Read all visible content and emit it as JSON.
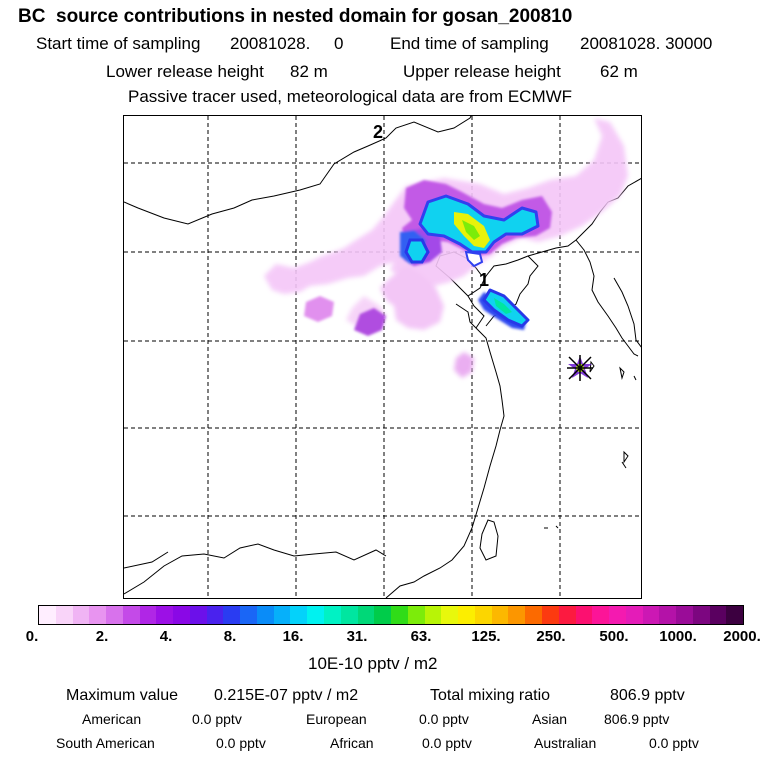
{
  "title": "BC  source contributions in nested domain for gosan_200810",
  "sampling": {
    "start_label": "Start time of sampling",
    "start_value": "20081028.     0",
    "end_label": "End time of sampling",
    "end_value": "20081028. 30000"
  },
  "release": {
    "lower_label": "Lower release height",
    "lower_value": "82 m",
    "upper_label": "Upper release height",
    "upper_value": "62 m"
  },
  "note": "Passive tracer used, meteorological data are from ECMWF",
  "map": {
    "markers": [
      {
        "label": "1"
      },
      {
        "label": "2"
      }
    ],
    "receptor": "gosan-receptor-star"
  },
  "colorbar": {
    "ticks": [
      "0.",
      "2.",
      "4.",
      "8.",
      "16.",
      "31.",
      "63.",
      "125.",
      "250.",
      "500.",
      "1000.",
      "2000."
    ],
    "unit": "10E-10 pptv / m2",
    "colors": [
      "#ffeeff",
      "#f9d4f9",
      "#f0b4f4",
      "#e894f0",
      "#d872ec",
      "#c44ae8",
      "#b026e6",
      "#9c10e6",
      "#8a08e6",
      "#6c10ea",
      "#4a22ee",
      "#2a3cf2",
      "#1a66f6",
      "#0a8cf8",
      "#06b0fa",
      "#04d2fa",
      "#00f2f0",
      "#00f2c4",
      "#00e6a0",
      "#00d878",
      "#00cc4a",
      "#30dc18",
      "#7cec0a",
      "#b8f406",
      "#e8f80c",
      "#fcee00",
      "#fcd600",
      "#fcb800",
      "#fc9600",
      "#fc6a00",
      "#fc3a10",
      "#fc1a40",
      "#fc1070",
      "#fc1498",
      "#f41ab0",
      "#e41cb8",
      "#cc18b4",
      "#b412a8",
      "#9a0c98",
      "#7c0680",
      "#5a0060",
      "#3c0040"
    ]
  },
  "stats": {
    "max_label": "Maximum value",
    "max_value": "0.215E-07 pptv / m2",
    "total_label": "Total mixing ratio",
    "total_value": "806.9 pptv",
    "contributions": [
      {
        "name": "American",
        "value": "0.0 pptv"
      },
      {
        "name": "European",
        "value": "0.0 pptv"
      },
      {
        "name": "Asian",
        "value": "806.9 pptv"
      },
      {
        "name": "South American",
        "value": "0.0 pptv"
      },
      {
        "name": "African",
        "value": "0.0 pptv"
      },
      {
        "name": "Australian",
        "value": "0.0 pptv"
      }
    ]
  }
}
